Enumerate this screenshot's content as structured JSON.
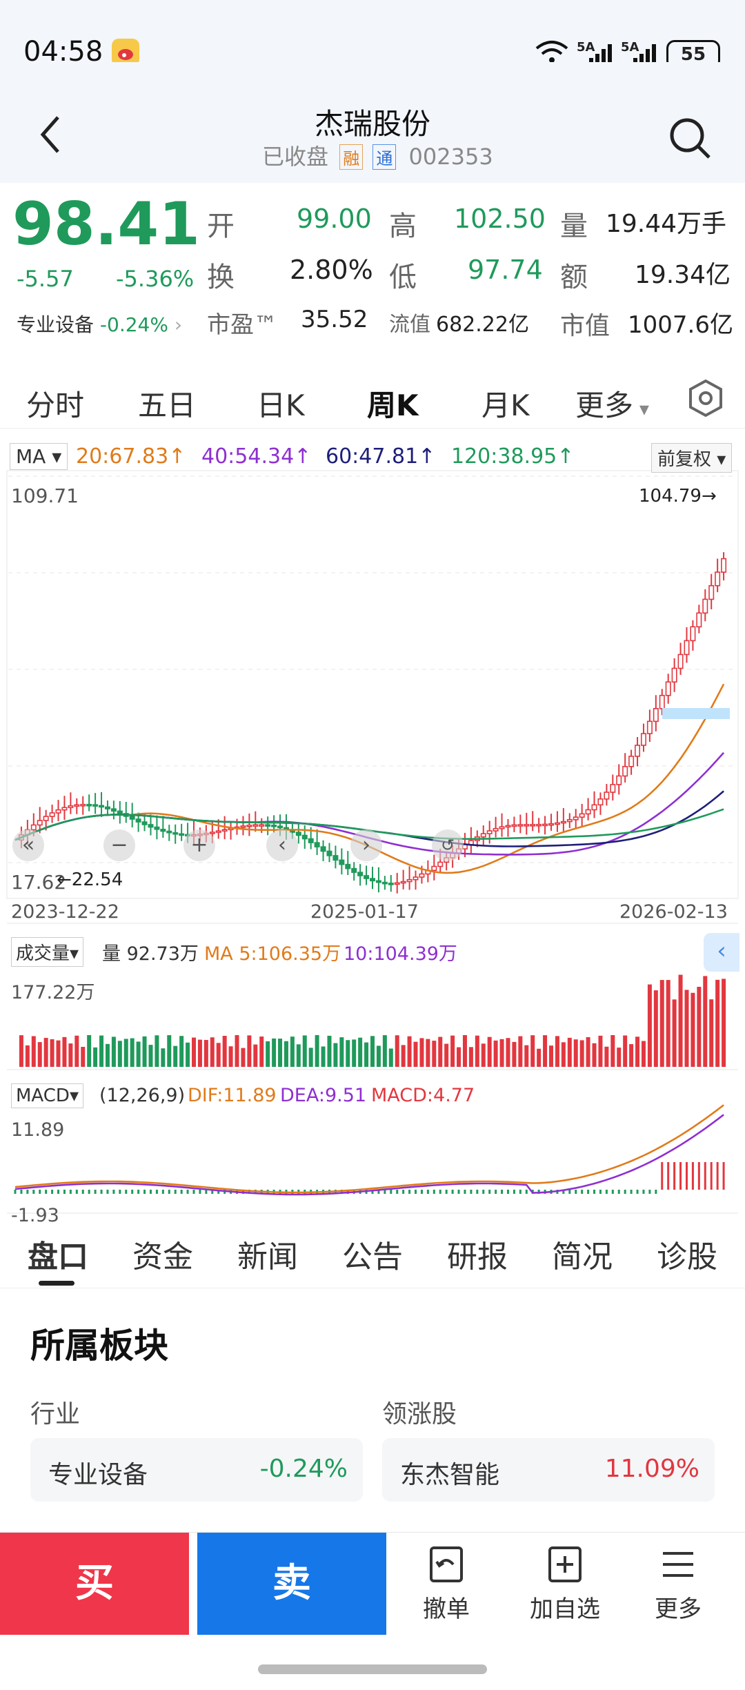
{
  "status_bar": {
    "time": "04:58",
    "network1": "5A",
    "network2": "5A",
    "battery": "55"
  },
  "header": {
    "title": "杰瑞股份",
    "status": "已收盘",
    "badge1": "融",
    "badge2": "通",
    "code": "002353"
  },
  "quote": {
    "price": "98.41",
    "change": "-5.57",
    "change_pct": "-5.36%",
    "sector": "专业设备",
    "sector_change": "-0.24%",
    "open_label": "开",
    "open": "99.00",
    "high_label": "高",
    "high": "102.50",
    "volume_label": "量",
    "volume": "19.44万手",
    "turnover_label": "换",
    "turnover": "2.80%",
    "low_label": "低",
    "low": "97.74",
    "amount_label": "额",
    "amount": "19.34亿",
    "pe_label": "市盈™",
    "pe": "35.52",
    "float_label": "流值",
    "float_value": "682.22亿",
    "mcap_label": "市值",
    "mcap": "1007.6亿"
  },
  "tabs": [
    "分时",
    "五日",
    "日K",
    "周K",
    "月K",
    "更多"
  ],
  "ma": {
    "label": "MA",
    "ma20": "20:67.83",
    "ma40": "40:54.34",
    "ma60": "60:47.81",
    "ma120": "120:38.95",
    "adjust": "前复权"
  },
  "chart": {
    "ymax": "109.71",
    "ymin": "17.62",
    "high_marker": "104.79",
    "low_marker": "22.54",
    "dates": [
      "2023-12-22",
      "2025-01-17",
      "2026-02-13"
    ]
  },
  "volume": {
    "label": "成交量",
    "value": "量 92.73万",
    "ma5": "MA 5:106.35万",
    "ma10": "10:104.39万",
    "max": "177.22万"
  },
  "macd": {
    "label": "MACD",
    "params": "(12,26,9)",
    "dif": "DIF:11.89",
    "dea": "DEA:9.51",
    "macd": "MACD:4.77",
    "ymax": "11.89",
    "ymin": "-1.93"
  },
  "bottom_tabs": [
    "盘口",
    "资金",
    "新闻",
    "公告",
    "研报",
    "简况",
    "诊股"
  ],
  "sector_block": {
    "title": "所属板块",
    "industry_label": "行业",
    "leader_label": "领涨股",
    "industry_name": "专业设备",
    "industry_change": "-0.24%",
    "leader_name": "东杰智能",
    "leader_change": "11.09%"
  },
  "actions": {
    "buy": "买",
    "sell": "卖",
    "cancel": "撤单",
    "watch": "加自选",
    "more": "更多"
  },
  "colors": {
    "up": "#e2373f",
    "down": "#1f9a5b",
    "ma20": "#e07b1a",
    "ma40": "#8e2fd1",
    "ma60": "#1d1f7a",
    "ma120": "#1f9a5b",
    "buy": "#f0364a",
    "sell": "#1677e8"
  }
}
